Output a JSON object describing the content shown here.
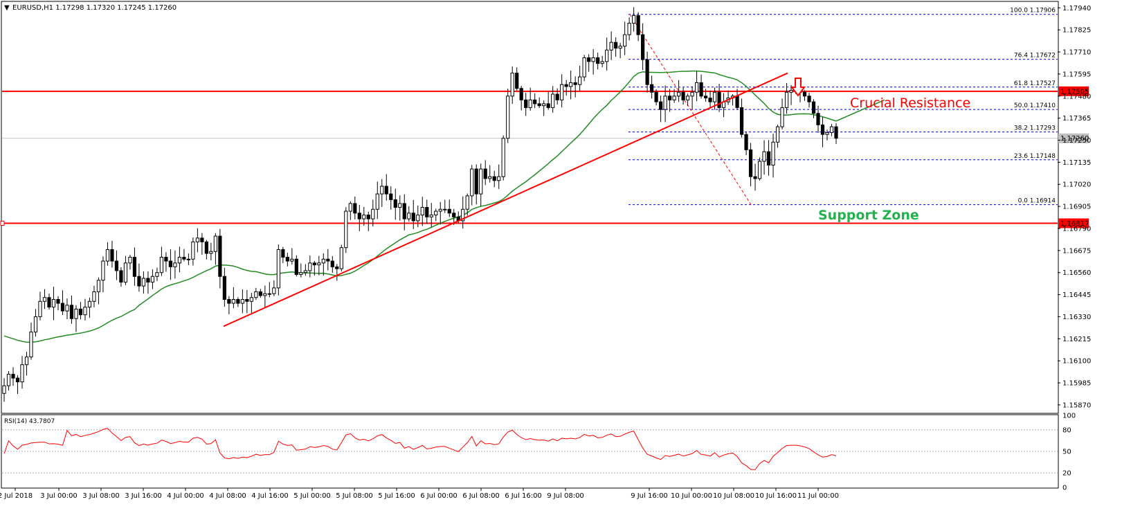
{
  "header": {
    "symbol_line": "EURUSD,H1  1.17298 1.17320 1.17245 1.17260"
  },
  "rsi_header": "RSI(14) 43.7807",
  "annotations": {
    "resistance_label": "Crucial Resistance",
    "support_label": "Support Zone"
  },
  "colors": {
    "candle": "#000000",
    "sma": "#228b22",
    "trendline": "#ff0000",
    "horizontal_level": "#ff0000",
    "fib_line": "#0000cc",
    "rsi": "#ff0000",
    "price_tag_bg": "#ff0000",
    "current_price_tag_bg": "#c0c0c0",
    "support_text": "#22b14c",
    "resistance_text": "#ff0000"
  },
  "chart_data": {
    "type": "candlestick",
    "symbol": "EURUSD",
    "timeframe": "H1",
    "last_ohlc": {
      "open": 1.17298,
      "high": 1.1732,
      "low": 1.17245,
      "close": 1.1726
    },
    "ylim": [
      1.1583,
      1.1797
    ],
    "yticks": [
      "1.17940",
      "1.17825",
      "1.17710",
      "1.17595",
      "1.17480",
      "1.17365",
      "1.17250",
      "1.17135",
      "1.17020",
      "1.16905",
      "1.16790",
      "1.16675",
      "1.16560",
      "1.16445",
      "1.16330",
      "1.16215",
      "1.16100",
      "1.15985",
      "1.15870"
    ],
    "xticks": [
      "2 Jul 2018",
      "3 Jul 00:00",
      "3 Jul 08:00",
      "3 Jul 16:00",
      "4 Jul 00:00",
      "4 Jul 08:00",
      "4 Jul 16:00",
      "5 Jul 00:00",
      "5 Jul 08:00",
      "5 Jul 16:00",
      "6 Jul 00:00",
      "6 Jul 08:00",
      "6 Jul 16:00",
      "9 Jul 08:00",
      "9 Jul 16:00",
      "10 Jul 00:00",
      "10 Jul 08:00",
      "10 Jul 16:00",
      "11 Jul 00:00"
    ],
    "closes": [
      1.1597,
      1.1603,
      1.1601,
      1.1599,
      1.1608,
      1.1612,
      1.1625,
      1.1633,
      1.1641,
      1.1643,
      1.1638,
      1.1642,
      1.164,
      1.1636,
      1.1639,
      1.1632,
      1.1637,
      1.1634,
      1.1638,
      1.1641,
      1.1646,
      1.1652,
      1.1662,
      1.1668,
      1.1662,
      1.1657,
      1.1651,
      1.1661,
      1.1664,
      1.1654,
      1.1649,
      1.1653,
      1.1651,
      1.1654,
      1.1656,
      1.1664,
      1.1662,
      1.1659,
      1.1661,
      1.1664,
      1.1663,
      1.1663,
      1.1672,
      1.1674,
      1.1672,
      1.1666,
      1.1667,
      1.1675,
      1.1654,
      1.1642,
      1.164,
      1.1642,
      1.164,
      1.1642,
      1.1641,
      1.1643,
      1.1646,
      1.1644,
      1.1645,
      1.1645,
      1.1648,
      1.1668,
      1.1664,
      1.1662,
      1.1663,
      1.1655,
      1.1656,
      1.1657,
      1.1661,
      1.166,
      1.1661,
      1.1663,
      1.1662,
      1.1659,
      1.1658,
      1.1669,
      1.1688,
      1.1692,
      1.1687,
      1.1684,
      1.1686,
      1.1684,
      1.1689,
      1.1697,
      1.1701,
      1.1697,
      1.1694,
      1.169,
      1.1692,
      1.1684,
      1.1687,
      1.1683,
      1.1686,
      1.169,
      1.1685,
      1.1686,
      1.1688,
      1.1689,
      1.1689,
      1.1687,
      1.1685,
      1.1683,
      1.1689,
      1.1696,
      1.171,
      1.1697,
      1.171,
      1.1705,
      1.1706,
      1.1704,
      1.1706,
      1.1726,
      1.1748,
      1.176,
      1.1752,
      1.1746,
      1.1742,
      1.1746,
      1.1744,
      1.1743,
      1.1744,
      1.1742,
      1.1749,
      1.1746,
      1.1754,
      1.1753,
      1.1755,
      1.1754,
      1.1758,
      1.1768,
      1.1766,
      1.1768,
      1.1765,
      1.1766,
      1.1772,
      1.1776,
      1.1773,
      1.1774,
      1.178,
      1.1786,
      1.179,
      1.178,
      1.1767,
      1.1754,
      1.175,
      1.1745,
      1.1741,
      1.1748,
      1.1746,
      1.1748,
      1.175,
      1.1746,
      1.1748,
      1.175,
      1.1755,
      1.1748,
      1.1747,
      1.1745,
      1.175,
      1.1742,
      1.1745,
      1.1747,
      1.1748,
      1.1742,
      1.1728,
      1.172,
      1.1706,
      1.1705,
      1.1714,
      1.1719,
      1.1712,
      1.1724,
      1.1732,
      1.1742,
      1.175,
      1.1751,
      1.1751,
      1.175,
      1.1748,
      1.1745,
      1.1739,
      1.1733,
      1.1728,
      1.1729,
      1.1732,
      1.1726
    ],
    "sma_first": 1.1623,
    "sma_last": 1.1746,
    "rsi": {
      "label": "RSI(14)",
      "last": 43.7807,
      "ylim": [
        0,
        100
      ],
      "levels": [
        20,
        50,
        80
      ],
      "ticks": [
        "100",
        "80",
        "50",
        "20",
        "0"
      ]
    },
    "horizontal_levels": [
      {
        "price": 1.17505,
        "label": "1.17505"
      },
      {
        "price": 1.16817,
        "label": "1.16817"
      }
    ],
    "current_price": {
      "price": 1.1726,
      "label": "1.17260"
    },
    "fibonacci": [
      {
        "level": "100.0",
        "price": 1.17906,
        "label": "100.0 1.17906"
      },
      {
        "level": "76.4",
        "price": 1.17672,
        "label": "76.4 1.17672"
      },
      {
        "level": "61.8",
        "price": 1.17527,
        "label": "61.8 1.17527"
      },
      {
        "level": "50.0",
        "price": 1.1741,
        "label": "50.0 1.17410"
      },
      {
        "level": "38.2",
        "price": 1.17293,
        "label": "38.2 1.17293"
      },
      {
        "level": "23.6",
        "price": 1.17148,
        "label": "23.6 1.17148"
      },
      {
        "level": "0.0",
        "price": 1.16914,
        "label": "0.0 1.16914"
      }
    ],
    "trendline": {
      "from": 1.1628,
      "to": 1.176
    }
  }
}
